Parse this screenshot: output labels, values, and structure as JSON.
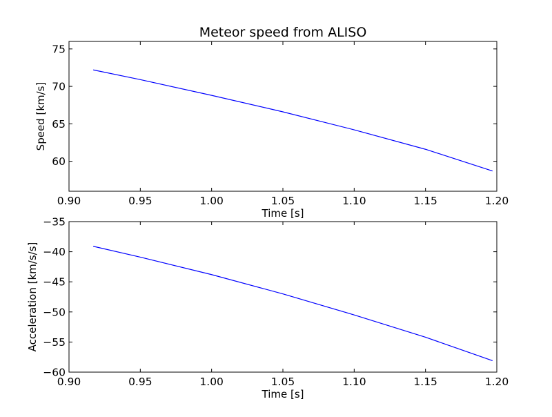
{
  "chart_data": [
    {
      "type": "line",
      "title": "Meteor speed from  ALISO",
      "xlabel": "Time [s]",
      "ylabel": "Speed [km/s]",
      "xlim": [
        0.9,
        1.2
      ],
      "ylim": [
        56,
        76
      ],
      "xticks": [
        "0.90",
        "0.95",
        "1.00",
        "1.05",
        "1.10",
        "1.15",
        "1.20"
      ],
      "yticks": [
        "60",
        "65",
        "70",
        "75"
      ],
      "series": [
        {
          "color": "#0000ff",
          "x": [
            0.917,
            0.95,
            1.0,
            1.05,
            1.1,
            1.15,
            1.197
          ],
          "y": [
            72.2,
            70.9,
            68.8,
            66.6,
            64.2,
            61.6,
            58.7
          ]
        }
      ]
    },
    {
      "type": "line",
      "title": "",
      "xlabel": "Time [s]",
      "ylabel": "Acceleration [km/s/s]",
      "xlim": [
        0.9,
        1.2
      ],
      "ylim": [
        -60,
        -35
      ],
      "xticks": [
        "0.90",
        "0.95",
        "1.00",
        "1.05",
        "1.10",
        "1.15",
        "1.20"
      ],
      "yticks": [
        "−35",
        "−40",
        "−45",
        "−50",
        "−55",
        "−60"
      ],
      "series": [
        {
          "color": "#0000ff",
          "x": [
            0.917,
            0.95,
            1.0,
            1.05,
            1.1,
            1.15,
            1.197
          ],
          "y": [
            -39.1,
            -40.9,
            -43.8,
            -47.0,
            -50.5,
            -54.2,
            -58.1
          ]
        }
      ]
    }
  ]
}
